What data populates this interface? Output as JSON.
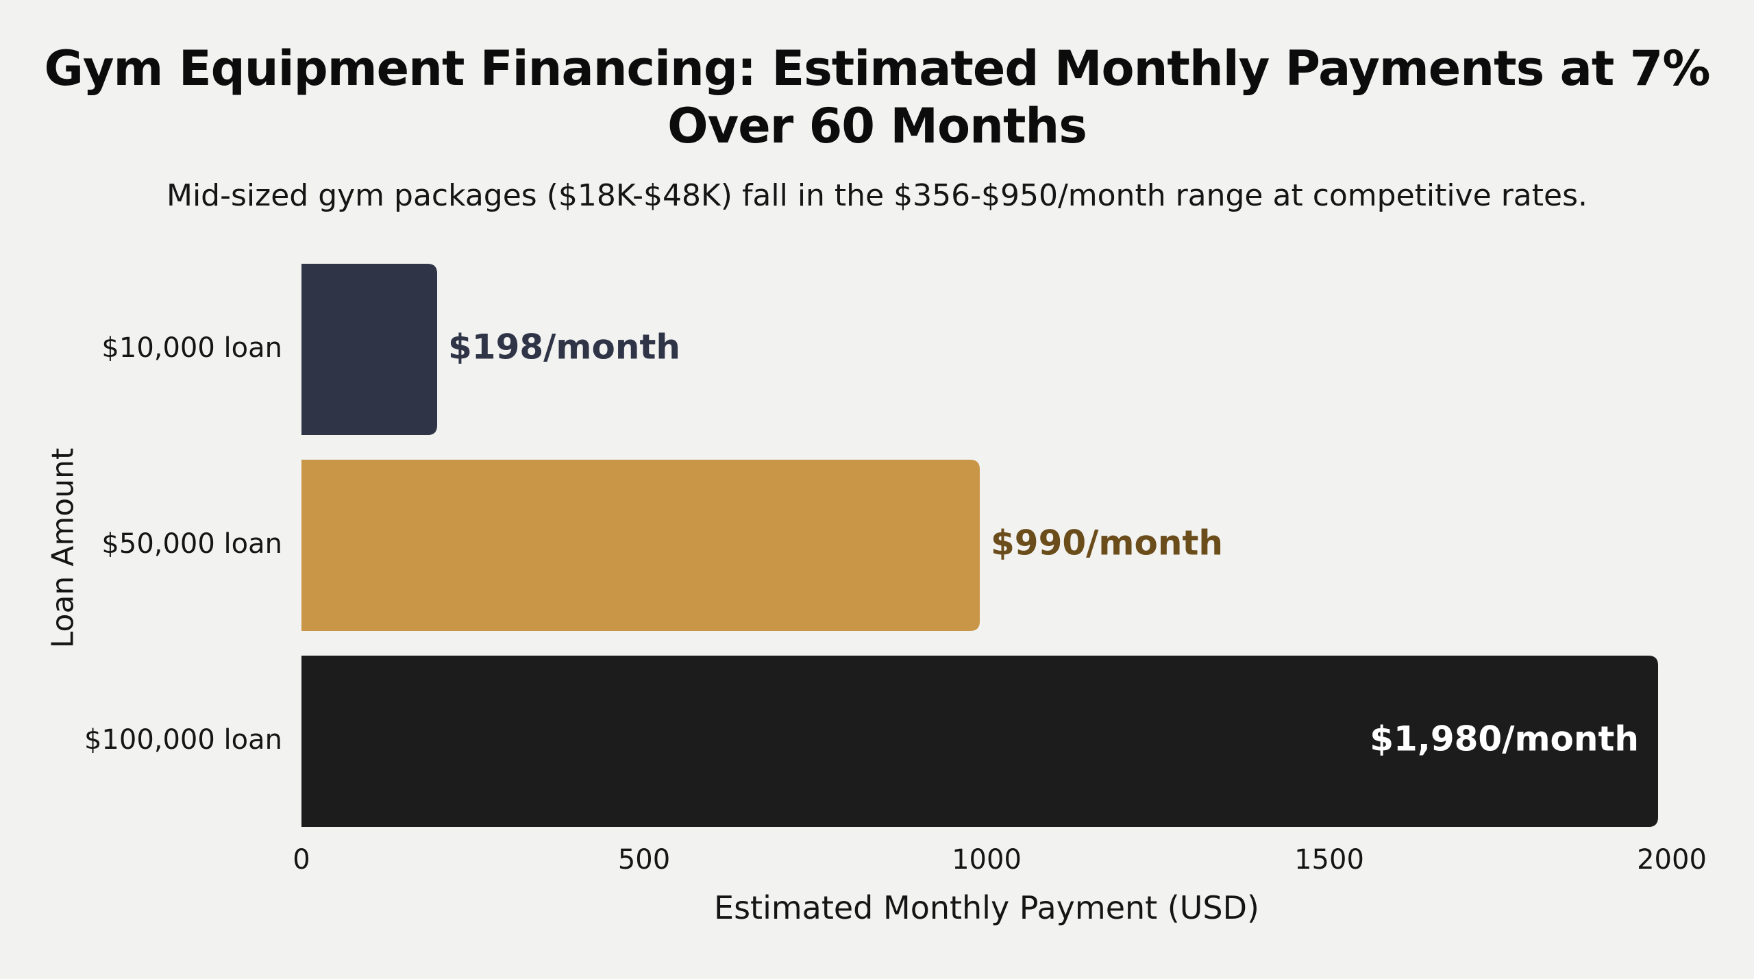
{
  "chart_data": {
    "type": "bar",
    "orientation": "horizontal",
    "title": "Gym Equipment Financing: Estimated Monthly Payments at 7% Over 60 Months",
    "subtitle": "Mid-sized gym packages ($18K-$48K) fall in the $356-$950/month range at competitive rates.",
    "xlabel": "Estimated Monthly Payment (USD)",
    "ylabel": "Loan Amount",
    "xlim": [
      0,
      2000
    ],
    "xticks": [
      0,
      500,
      1000,
      1500,
      2000
    ],
    "grid": false,
    "categories": [
      "$10,000 loan",
      "$50,000 loan",
      "$100,000 loan"
    ],
    "values": [
      198,
      990,
      1980
    ],
    "data_labels": [
      "$198/month",
      "$990/month",
      "$1,980/month"
    ],
    "bar_colors": [
      "#2f3447",
      "#c99647",
      "#1d1c1c"
    ],
    "label_colors": [
      "#2f3447",
      "#6b4d1c",
      "#ffffff"
    ],
    "label_positions": [
      "outside",
      "outside",
      "inside"
    ]
  }
}
